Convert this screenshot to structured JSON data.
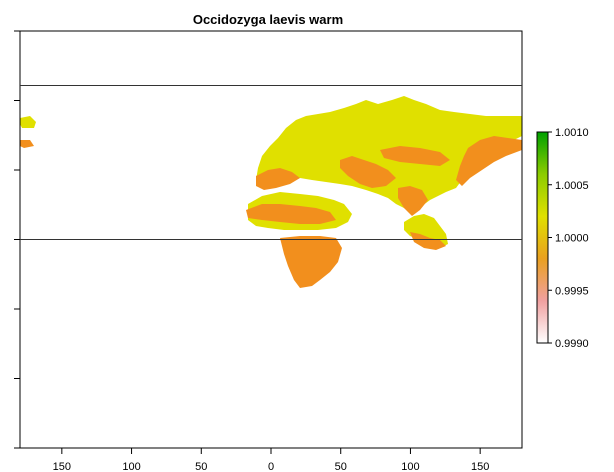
{
  "title": "Occidozyga laevis warm",
  "x_axis": {
    "ticks": [
      -150,
      -100,
      -50,
      0,
      50,
      100,
      150
    ],
    "labels": [
      "150",
      "100",
      "50",
      "0",
      "50",
      "100",
      "150"
    ],
    "range": [
      -180,
      180
    ]
  },
  "y_axis": {
    "range": [
      -90,
      90
    ],
    "ticks": [
      -90,
      -60,
      -30,
      0,
      30,
      60,
      90
    ],
    "labels": [
      "",
      "",
      "",
      "",
      "",
      "",
      ""
    ]
  },
  "reference_lines": {
    "latitudes": [
      66.5,
      0
    ]
  },
  "legend": {
    "values": [
      1.001,
      1.0005,
      1.0,
      0.9995,
      0.999
    ],
    "labels": [
      "1.0010",
      "1.0005",
      "1.0000",
      "0.9995",
      "0.9990"
    ],
    "range": [
      0.999,
      1.001
    ],
    "colors": [
      "#ffffff",
      "#f0a0a0",
      "#e9a020",
      "#e0e000",
      "#8ccc00",
      "#00a000"
    ]
  },
  "colors": {
    "stable": "#e0e000",
    "decline": "#f28f1d",
    "axes": "#000000",
    "lines": "#333333"
  }
}
